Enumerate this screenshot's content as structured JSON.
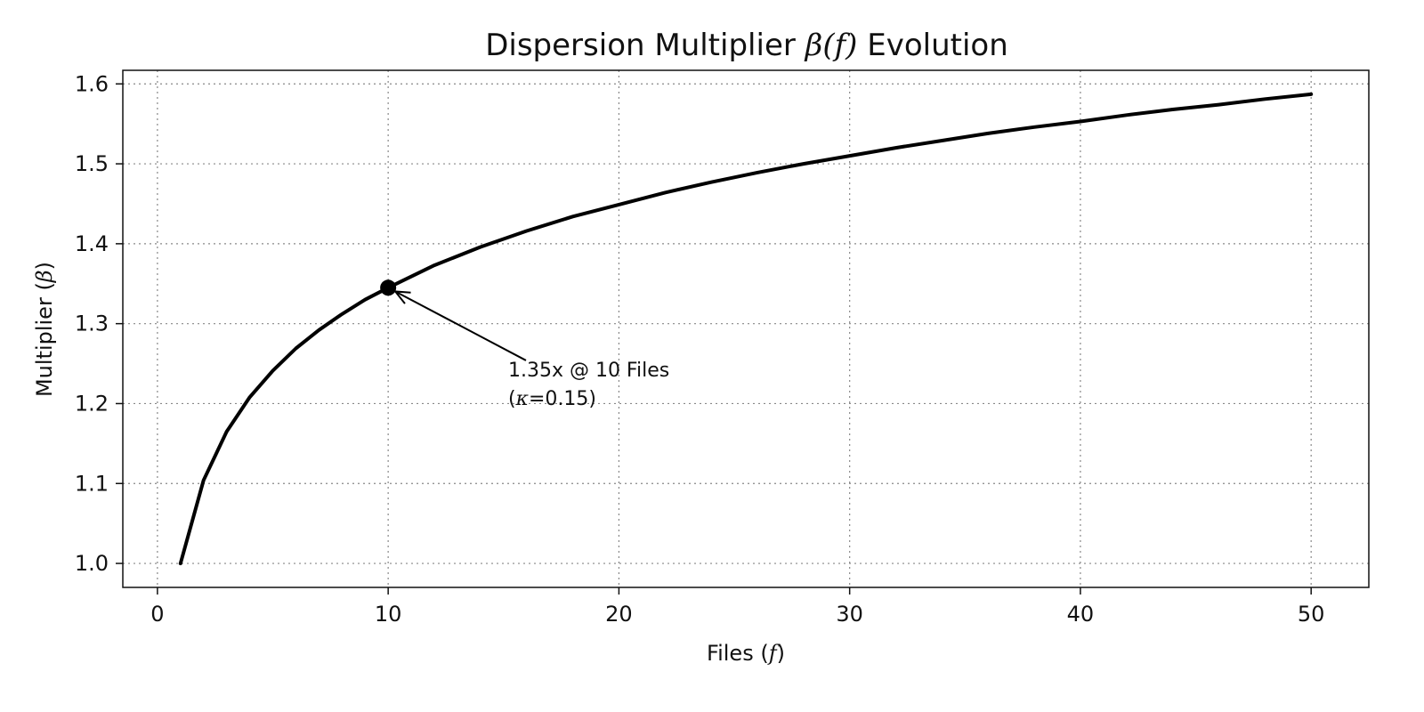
{
  "chart_data": {
    "type": "line",
    "title": {
      "prefix": "Dispersion Multiplier ",
      "math": "β(f)",
      "suffix": " Evolution"
    },
    "xlabel": {
      "prefix": "Files (",
      "math": "f",
      "suffix": ")"
    },
    "ylabel": {
      "prefix": "Multiplier (",
      "math": "β",
      "suffix": ")"
    },
    "xlim": [
      -1.5,
      52.5
    ],
    "ylim": [
      0.97,
      1.617
    ],
    "xticks": [
      0,
      10,
      20,
      30,
      40,
      50
    ],
    "xtick_labels": [
      "0",
      "10",
      "20",
      "30",
      "40",
      "50"
    ],
    "yticks": [
      1.0,
      1.1,
      1.2,
      1.3,
      1.4,
      1.5,
      1.6
    ],
    "ytick_labels": [
      "1.0",
      "1.1",
      "1.2",
      "1.3",
      "1.4",
      "1.5",
      "1.6"
    ],
    "grid": true,
    "series": [
      {
        "color": "#000000",
        "x": [
          1,
          2,
          3,
          4,
          5,
          6,
          7,
          8,
          9,
          10,
          12,
          14,
          16,
          18,
          20,
          22,
          24,
          26,
          28,
          30,
          32,
          34,
          36,
          38,
          40,
          42,
          44,
          46,
          48,
          50
        ],
        "y": [
          1.0,
          1.104,
          1.165,
          1.208,
          1.241,
          1.269,
          1.292,
          1.312,
          1.33,
          1.345,
          1.373,
          1.396,
          1.416,
          1.434,
          1.449,
          1.464,
          1.477,
          1.489,
          1.5,
          1.51,
          1.52,
          1.529,
          1.538,
          1.546,
          1.553,
          1.561,
          1.568,
          1.574,
          1.581,
          1.587
        ]
      }
    ],
    "highlight_point": {
      "x": 10,
      "y": 1.345
    },
    "annotation": {
      "line1": "1.35x @ 10 Files",
      "line2_prefix": "(",
      "line2_math": "κ",
      "line2_suffix": "=0.15)",
      "text_anchor": {
        "x": 15.2,
        "y": 1.234
      }
    }
  }
}
